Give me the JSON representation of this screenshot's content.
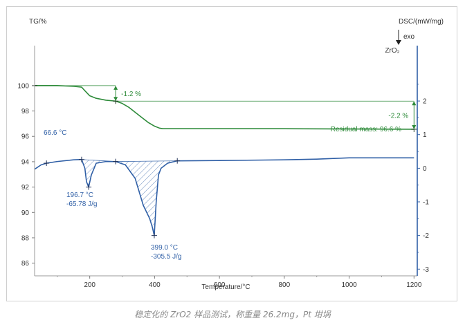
{
  "chart_data": {
    "type": "line",
    "xlabel": "Temperature/°C",
    "left_ylabel": "TG/%",
    "right_ylabel": "DSC/(mW/mg)",
    "exo_label": "exo",
    "sample_label": "ZrO₂",
    "xlim": [
      30,
      1210
    ],
    "left_ylim": [
      85,
      102.5
    ],
    "right_ylim": [
      -3.2,
      3.4
    ],
    "x_ticks": [
      200,
      400,
      600,
      800,
      1000,
      1200
    ],
    "x_tick_labels": [
      "200",
      "400",
      "600",
      "800",
      "1000",
      "1200"
    ],
    "left_ticks": [
      86,
      88,
      90,
      92,
      94,
      96,
      98,
      100
    ],
    "left_tick_labels": [
      "86",
      "88",
      "90",
      "92",
      "94",
      "96",
      "98",
      "100"
    ],
    "right_ticks": [
      2,
      1,
      0,
      -1,
      -2,
      -3
    ],
    "right_tick_labels": [
      "2",
      "1",
      "0",
      "-1",
      "-2",
      "-3"
    ],
    "series": [
      {
        "name": "TG",
        "axis": "left",
        "color": "#2e8b3a",
        "x": [
          30,
          100,
          150,
          175,
          185,
          200,
          220,
          250,
          280,
          300,
          320,
          340,
          360,
          380,
          400,
          415,
          425,
          440,
          500,
          600,
          800,
          1000,
          1200
        ],
        "y": [
          100.0,
          100.0,
          99.95,
          99.88,
          99.6,
          99.2,
          99.0,
          98.85,
          98.78,
          98.6,
          98.3,
          97.9,
          97.5,
          97.1,
          96.8,
          96.65,
          96.6,
          96.6,
          96.6,
          96.6,
          96.6,
          96.58,
          96.56
        ]
      },
      {
        "name": "DSC",
        "axis": "right",
        "color": "#2f5fa6",
        "x": [
          30,
          50,
          66.6,
          100,
          150,
          175,
          185,
          190,
          196.7,
          205,
          220,
          250,
          280,
          310,
          340,
          365,
          385,
          393,
          399,
          405,
          412,
          420,
          440,
          470,
          600,
          800,
          900,
          1000,
          1100,
          1200
        ],
        "y": [
          -0.03,
          0.1,
          0.15,
          0.2,
          0.25,
          0.26,
          0.0,
          -0.4,
          -0.56,
          -0.2,
          0.15,
          0.2,
          0.2,
          0.1,
          -0.3,
          -1.1,
          -1.5,
          -1.75,
          -2.0,
          -1.0,
          -0.2,
          0.0,
          0.15,
          0.22,
          0.23,
          0.25,
          0.27,
          0.31,
          0.31,
          0.31
        ]
      }
    ],
    "annotations": [
      {
        "text": "-1.2 %",
        "color": "green"
      },
      {
        "text": "-2.2 %",
        "color": "green"
      },
      {
        "text": "Residual mass: 96.6 %",
        "color": "green"
      },
      {
        "text": "66.6 °C",
        "color": "blue"
      },
      {
        "text": "196.7 °C",
        "color": "blue"
      },
      {
        "text": "-65.78 J/g",
        "color": "blue"
      },
      {
        "text": "399.0 °C",
        "color": "blue"
      },
      {
        "text": "-305.5 J/g",
        "color": "blue"
      }
    ],
    "markers": {
      "tg": [
        {
          "x": 30,
          "y": 100.0
        },
        {
          "x": 280,
          "y": 98.78
        },
        {
          "x": 1200,
          "y": 96.56
        }
      ],
      "dsc": [
        {
          "x": 66.6,
          "y": 0.15
        },
        {
          "x": 175,
          "y": 0.26
        },
        {
          "x": 196.7,
          "y": -0.56
        },
        {
          "x": 280,
          "y": 0.2
        },
        {
          "x": 399,
          "y": -2.0
        },
        {
          "x": 470,
          "y": 0.22
        }
      ]
    },
    "peak_areas": [
      {
        "x_from": 175,
        "x_to": 280,
        "baseline": [
          0.26,
          0.2
        ]
      },
      {
        "x_from": 280,
        "x_to": 470,
        "baseline": [
          0.2,
          0.22
        ]
      }
    ],
    "step_refs": {
      "first": {
        "x_from": 30,
        "x_to": 280,
        "top": 100.0,
        "bottom": 98.78
      },
      "second": {
        "x_from": 280,
        "x_to": 1200,
        "top": 98.78,
        "bottom": 96.56
      }
    }
  },
  "caption": "稳定化的 ZrO2 样品测试，称重量 26.2mg，Pt 坩埚"
}
